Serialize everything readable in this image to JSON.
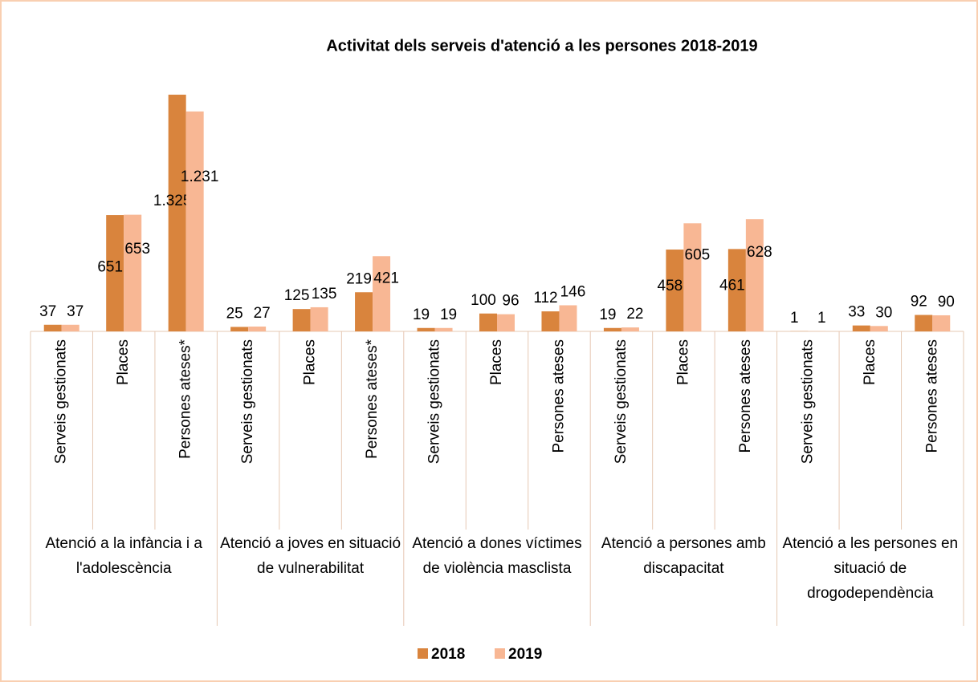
{
  "chart_data": {
    "type": "bar",
    "title": "Activitat dels serveis d'atenció a les persones 2018-2019",
    "groups": [
      {
        "name": "Atenció a la infància i a l'adolescència",
        "items": [
          "Serveis gestionats",
          "Places",
          "Persones ateses*"
        ]
      },
      {
        "name": "Atenció a joves en situació de vulnerabilitat",
        "items": [
          "Serveis gestionats",
          "Places",
          "Persones ateses*"
        ]
      },
      {
        "name": "Atenció a dones víctimes de violència masclista",
        "items": [
          "Serveis gestionats",
          "Places",
          "Persones ateses"
        ]
      },
      {
        "name": "Atenció a persones amb discapacitat",
        "items": [
          "Serveis gestionats",
          "Places",
          "Persones ateses"
        ]
      },
      {
        "name": "Atenció a les persones en situació de drogodependència",
        "items": [
          "Serveis gestionats",
          "Places",
          "Persones ateses"
        ]
      }
    ],
    "series": [
      {
        "name": "2018",
        "color": "#d9843d",
        "values": [
          37,
          651,
          1325,
          25,
          125,
          219,
          19,
          100,
          112,
          19,
          458,
          461,
          1,
          33,
          92
        ],
        "value_labels": [
          "37",
          "651",
          "1.325",
          "25",
          "125",
          "219",
          "19",
          "100",
          "112",
          "19",
          "458",
          "461",
          "1",
          "33",
          "92"
        ]
      },
      {
        "name": "2019",
        "color": "#f8b794",
        "values": [
          37,
          653,
          1231,
          27,
          135,
          421,
          19,
          96,
          146,
          22,
          605,
          628,
          1,
          30,
          90
        ],
        "value_labels": [
          "37",
          "653",
          "1.231",
          "27",
          "135",
          "421",
          "19",
          "96",
          "146",
          "22",
          "605",
          "628",
          "1",
          "30",
          "90"
        ]
      }
    ],
    "legend": "bottom"
  }
}
